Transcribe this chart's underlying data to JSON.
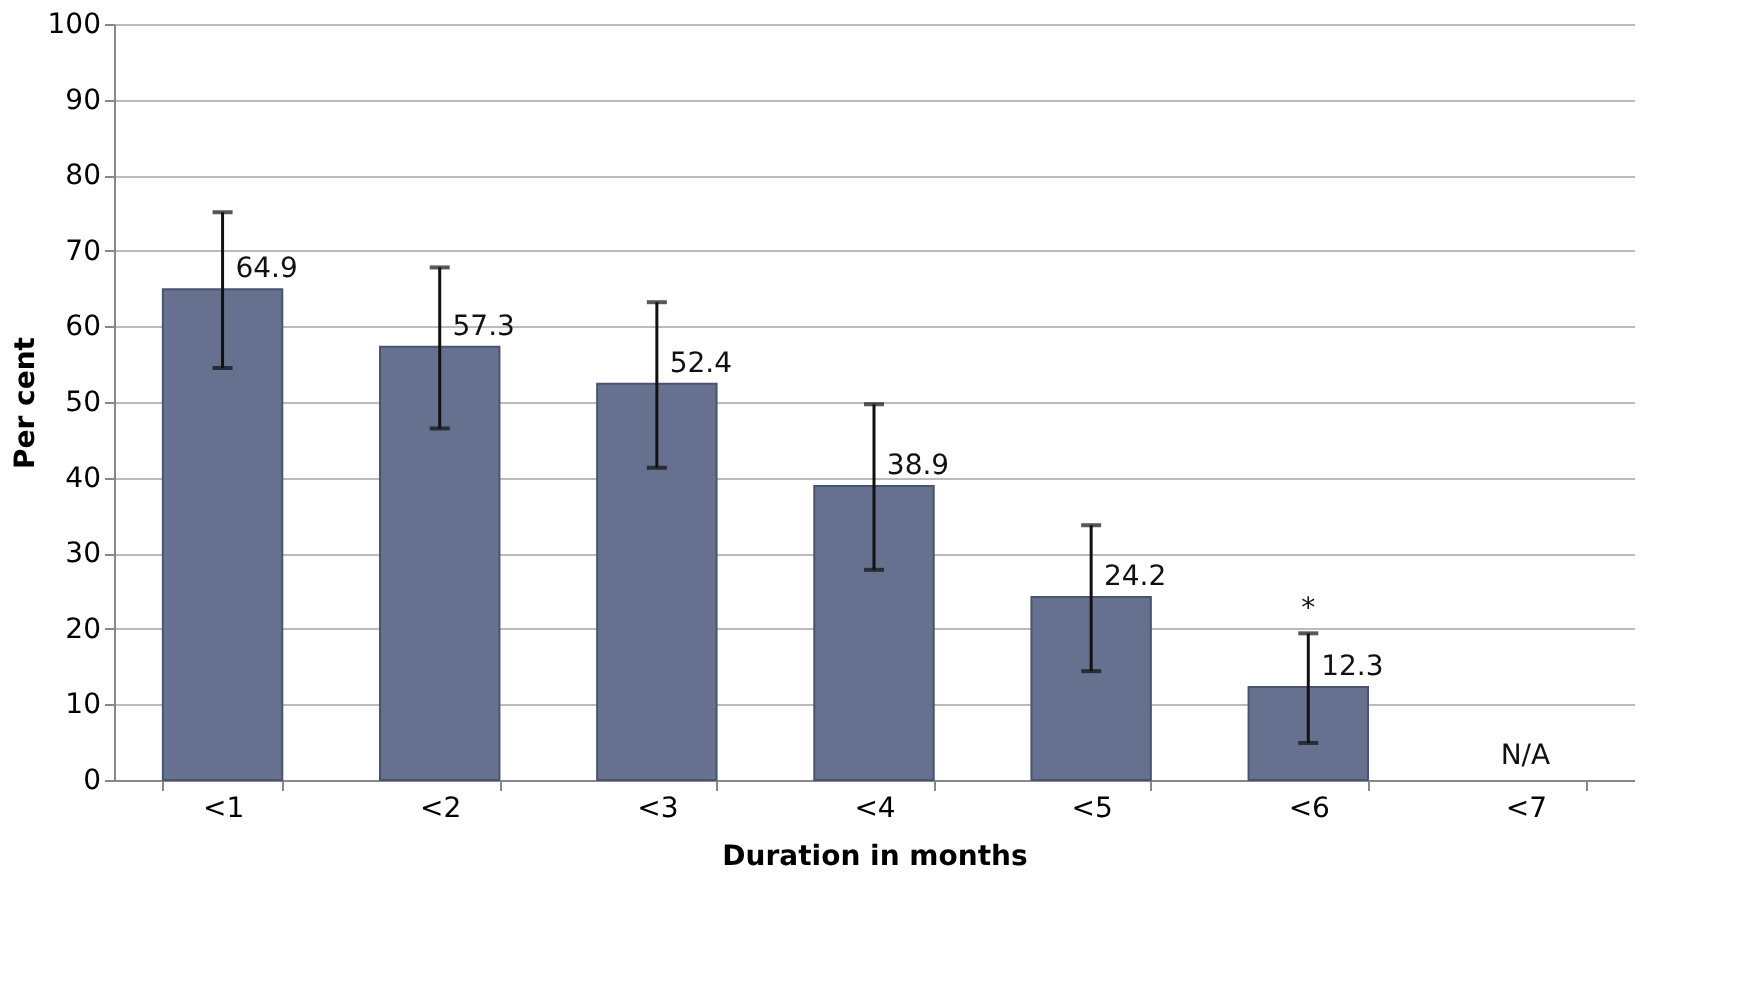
{
  "chart_data": {
    "type": "bar",
    "xlabel": "Duration in months",
    "ylabel": "Per cent",
    "categories": [
      "<1",
      "<2",
      "<3",
      "<4",
      "<5",
      "<6",
      "<7"
    ],
    "values": [
      64.9,
      57.3,
      52.4,
      38.9,
      24.2,
      12.3,
      null
    ],
    "errors": [
      [
        54.5,
        75.1
      ],
      [
        46.5,
        67.8
      ],
      [
        41.3,
        63.2
      ],
      [
        27.8,
        49.7
      ],
      [
        14.4,
        33.7
      ],
      [
        4.9,
        19.4
      ],
      null
    ],
    "color": "#66718f",
    "data_labels": true,
    "ylim": [
      0,
      100
    ],
    "yticks": [
      0,
      10,
      20,
      30,
      40,
      50,
      60,
      70,
      80,
      90,
      100
    ],
    "grid": "y",
    "annotations": [
      "*",
      "N/A"
    ]
  }
}
